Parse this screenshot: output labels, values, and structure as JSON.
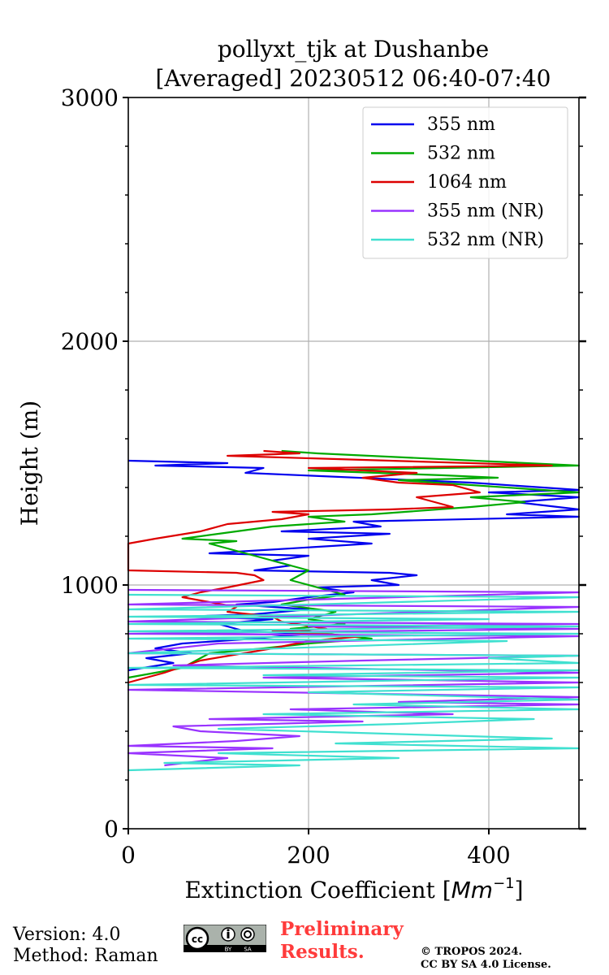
{
  "chart_data": {
    "type": "line",
    "title_line1": "pollyxt_tjk at Dushanbe",
    "title_line2": "[Averaged] 20230512 06:40-07:40",
    "xlabel": "Extinction Coefficient [",
    "xlabel_unit": "Mm",
    "xlabel_exp": "−1",
    "xlabel_close": "]",
    "ylabel": "Height (m)",
    "xlim": [
      0,
      500
    ],
    "ylim": [
      0,
      3000
    ],
    "xticks": [
      0,
      200,
      400
    ],
    "yticks": [
      0,
      1000,
      2000,
      3000
    ],
    "grid": true,
    "legend_position": "top-right",
    "series": [
      {
        "name": "355 nm",
        "color": "#0000ee",
        "points": [
          [
            0,
            1510
          ],
          [
            110,
            1500
          ],
          [
            30,
            1490
          ],
          [
            150,
            1480
          ],
          [
            130,
            1460
          ],
          [
            380,
            1420
          ],
          [
            500,
            1390
          ],
          [
            400,
            1380
          ],
          [
            500,
            1360
          ],
          [
            430,
            1340
          ],
          [
            500,
            1310
          ],
          [
            420,
            1290
          ],
          [
            500,
            1280
          ],
          [
            250,
            1260
          ],
          [
            280,
            1240
          ],
          [
            170,
            1220
          ],
          [
            290,
            1210
          ],
          [
            200,
            1190
          ],
          [
            270,
            1170
          ],
          [
            90,
            1130
          ],
          [
            200,
            1120
          ],
          [
            160,
            1100
          ],
          [
            180,
            1080
          ],
          [
            140,
            1060
          ],
          [
            290,
            1050
          ],
          [
            320,
            1040
          ],
          [
            270,
            1020
          ],
          [
            300,
            1000
          ],
          [
            210,
            990
          ],
          [
            250,
            970
          ],
          [
            200,
            950
          ],
          [
            160,
            930
          ],
          [
            120,
            920
          ],
          [
            200,
            900
          ],
          [
            140,
            880
          ],
          [
            60,
            870
          ],
          [
            160,
            860
          ],
          [
            100,
            840
          ],
          [
            130,
            810
          ],
          [
            200,
            800
          ],
          [
            140,
            780
          ],
          [
            60,
            760
          ],
          [
            30,
            740
          ],
          [
            70,
            720
          ],
          [
            20,
            700
          ],
          [
            50,
            680
          ],
          [
            0,
            650
          ]
        ]
      },
      {
        "name": "532 nm",
        "color": "#00aa00",
        "points": [
          [
            170,
            1550
          ],
          [
            210,
            1540
          ],
          [
            500,
            1490
          ],
          [
            200,
            1470
          ],
          [
            350,
            1450
          ],
          [
            410,
            1440
          ],
          [
            300,
            1430
          ],
          [
            500,
            1380
          ],
          [
            380,
            1360
          ],
          [
            440,
            1340
          ],
          [
            380,
            1320
          ],
          [
            270,
            1290
          ],
          [
            200,
            1280
          ],
          [
            240,
            1260
          ],
          [
            160,
            1240
          ],
          [
            120,
            1220
          ],
          [
            60,
            1190
          ],
          [
            120,
            1180
          ],
          [
            90,
            1170
          ],
          [
            200,
            1060
          ],
          [
            180,
            1020
          ],
          [
            240,
            960
          ],
          [
            200,
            940
          ],
          [
            170,
            920
          ],
          [
            230,
            890
          ],
          [
            200,
            860
          ],
          [
            240,
            840
          ],
          [
            180,
            820
          ],
          [
            220,
            800
          ],
          [
            270,
            780
          ],
          [
            200,
            760
          ],
          [
            150,
            740
          ],
          [
            90,
            720
          ],
          [
            60,
            660
          ],
          [
            0,
            620
          ]
        ]
      },
      {
        "name": "1064 nm",
        "color": "#dd0000",
        "points": [
          [
            150,
            1550
          ],
          [
            190,
            1540
          ],
          [
            110,
            1530
          ],
          [
            470,
            1490
          ],
          [
            200,
            1480
          ],
          [
            320,
            1460
          ],
          [
            260,
            1440
          ],
          [
            300,
            1420
          ],
          [
            360,
            1410
          ],
          [
            390,
            1380
          ],
          [
            320,
            1360
          ],
          [
            340,
            1340
          ],
          [
            360,
            1320
          ],
          [
            290,
            1310
          ],
          [
            160,
            1300
          ],
          [
            200,
            1290
          ],
          [
            170,
            1270
          ],
          [
            110,
            1250
          ],
          [
            80,
            1220
          ],
          [
            30,
            1190
          ],
          [
            0,
            1170
          ],
          [
            0,
            1060
          ],
          [
            120,
            1050
          ],
          [
            140,
            1040
          ],
          [
            150,
            1020
          ],
          [
            110,
            990
          ],
          [
            80,
            970
          ],
          [
            60,
            950
          ],
          [
            90,
            930
          ],
          [
            120,
            910
          ],
          [
            110,
            890
          ],
          [
            160,
            870
          ],
          [
            170,
            850
          ],
          [
            220,
            820
          ],
          [
            160,
            810
          ],
          [
            260,
            790
          ],
          [
            200,
            770
          ],
          [
            160,
            740
          ],
          [
            80,
            690
          ],
          [
            40,
            640
          ],
          [
            0,
            600
          ]
        ]
      },
      {
        "name": "355 nm (NR)",
        "color": "#9933ff",
        "points": [
          [
            0,
            980
          ],
          [
            500,
            970
          ],
          [
            0,
            920
          ],
          [
            500,
            910
          ],
          [
            0,
            850
          ],
          [
            500,
            840
          ],
          [
            200,
            830
          ],
          [
            500,
            820
          ],
          [
            0,
            800
          ],
          [
            500,
            790
          ],
          [
            100,
            760
          ],
          [
            0,
            720
          ],
          [
            500,
            710
          ],
          [
            260,
            690
          ],
          [
            50,
            670
          ],
          [
            500,
            640
          ],
          [
            150,
            620
          ],
          [
            500,
            600
          ],
          [
            0,
            570
          ],
          [
            500,
            540
          ],
          [
            300,
            520
          ],
          [
            500,
            510
          ],
          [
            180,
            490
          ],
          [
            360,
            470
          ],
          [
            90,
            450
          ],
          [
            260,
            440
          ],
          [
            50,
            420
          ],
          [
            80,
            400
          ],
          [
            190,
            380
          ],
          [
            120,
            360
          ],
          [
            0,
            340
          ],
          [
            160,
            330
          ],
          [
            0,
            310
          ],
          [
            110,
            290
          ],
          [
            40,
            260
          ]
        ]
      },
      {
        "name": "532 nm (NR)",
        "color": "#40e0d0",
        "points": [
          [
            0,
            960
          ],
          [
            500,
            950
          ],
          [
            0,
            900
          ],
          [
            500,
            890
          ],
          [
            0,
            870
          ],
          [
            400,
            860
          ],
          [
            0,
            840
          ],
          [
            500,
            830
          ],
          [
            0,
            810
          ],
          [
            500,
            800
          ],
          [
            0,
            780
          ],
          [
            420,
            770
          ],
          [
            0,
            720
          ],
          [
            500,
            710
          ],
          [
            400,
            700
          ],
          [
            500,
            680
          ],
          [
            0,
            660
          ],
          [
            500,
            650
          ],
          [
            150,
            630
          ],
          [
            500,
            620
          ],
          [
            0,
            590
          ],
          [
            500,
            580
          ],
          [
            200,
            560
          ],
          [
            500,
            530
          ],
          [
            250,
            510
          ],
          [
            500,
            490
          ],
          [
            150,
            470
          ],
          [
            450,
            450
          ],
          [
            300,
            430
          ],
          [
            100,
            410
          ],
          [
            470,
            370
          ],
          [
            230,
            350
          ],
          [
            500,
            330
          ],
          [
            100,
            310
          ],
          [
            300,
            290
          ],
          [
            40,
            270
          ],
          [
            190,
            260
          ],
          [
            0,
            240
          ]
        ]
      }
    ]
  },
  "footer": {
    "version": "Version: 4.0",
    "method": "Method: Raman",
    "prelim_line1": "Preliminary",
    "prelim_line2": "Results.",
    "copyright_line1": "© TROPOS 2024.",
    "copyright_line2": "CC BY SA 4.0 License.",
    "license_badge": {
      "cc": "cc",
      "by": "BY",
      "sa": "SA"
    }
  }
}
